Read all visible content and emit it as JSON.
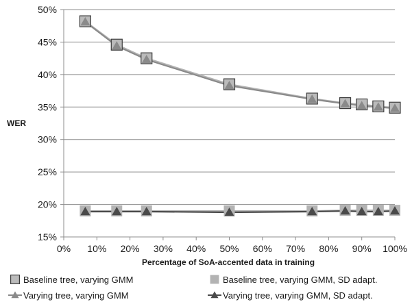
{
  "chart_data": {
    "type": "line",
    "title": "",
    "xlabel": "Percentage of SoA-accented data in training",
    "ylabel": "WER",
    "x": [
      6.5,
      16,
      25,
      50,
      75,
      85,
      90,
      95,
      100
    ],
    "xlim": [
      0,
      100
    ],
    "ylim": [
      15,
      50
    ],
    "x_ticks": [
      "0%",
      "10%",
      "20%",
      "30%",
      "40%",
      "50%",
      "60%",
      "70%",
      "80%",
      "90%",
      "100%"
    ],
    "y_ticks": [
      "15%",
      "20%",
      "25%",
      "30%",
      "35%",
      "40%",
      "45%",
      "50%"
    ],
    "grid": "horizontal",
    "legend_position": "bottom",
    "series": [
      {
        "name": "Baseline tree, varying GMM",
        "marker": "square",
        "color": "#bbbbbb",
        "line_color": "#b3b3b3",
        "values": [
          48.2,
          44.6,
          42.5,
          38.5,
          36.3,
          35.6,
          35.4,
          35.1,
          34.9
        ]
      },
      {
        "name": "Baseline tree, varying GMM, SD adapt.",
        "marker": "square-flat",
        "color": "#b3b3b3",
        "line_color": "#b3b3b3",
        "values": [
          19.0,
          19.0,
          19.0,
          19.0,
          19.0,
          19.1,
          19.1,
          19.1,
          19.1
        ]
      },
      {
        "name": "Varying tree, varying GMM",
        "marker": "triangle",
        "color": "#8a8a8a",
        "line_color": "#8a8a8a",
        "values": [
          48.1,
          44.4,
          42.3,
          38.3,
          36.2,
          35.5,
          35.2,
          35.0,
          34.8
        ]
      },
      {
        "name": "Varying tree, varying GMM, SD adapt.",
        "marker": "triangle",
        "color": "#4a4a4a",
        "line_color": "#4a4a4a",
        "values": [
          18.9,
          18.9,
          18.9,
          18.8,
          18.9,
          19.0,
          18.9,
          18.9,
          19.0
        ]
      }
    ]
  }
}
